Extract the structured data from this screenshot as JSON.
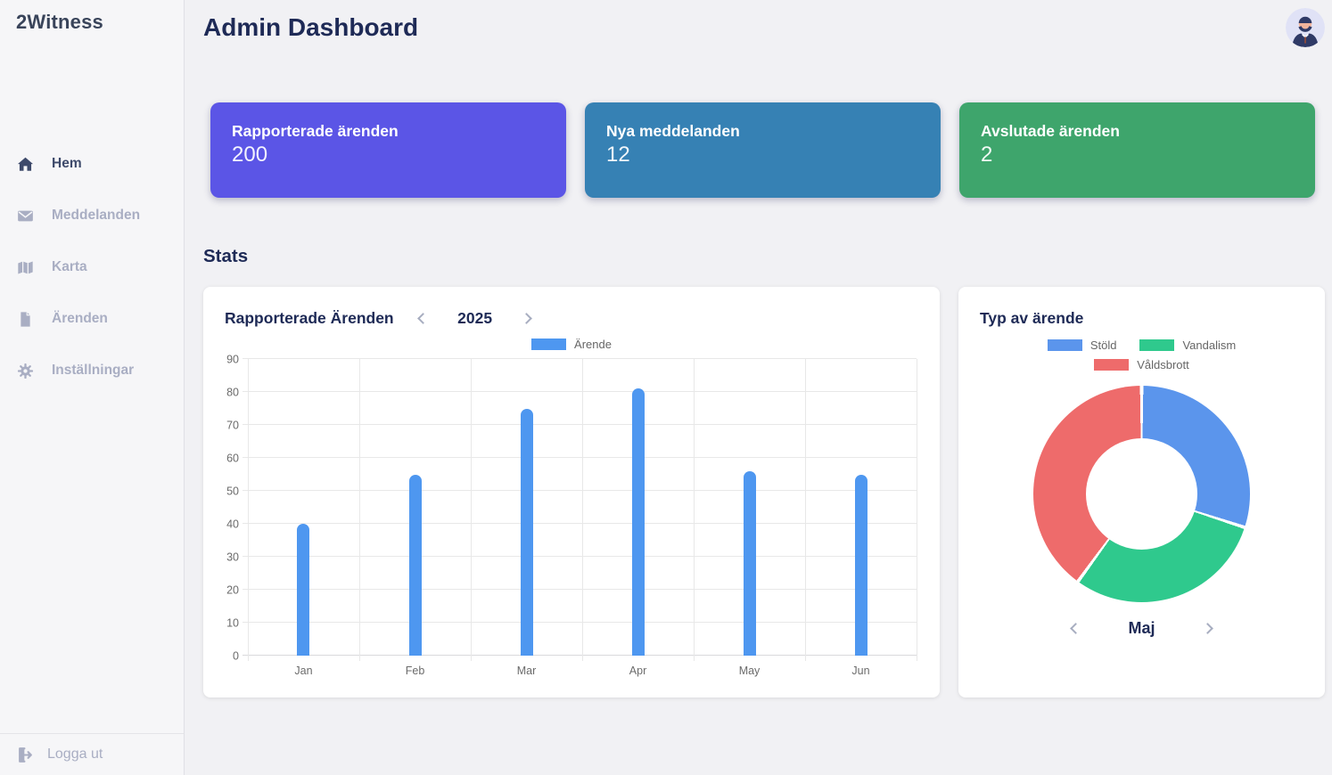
{
  "app": {
    "logo": "2Witness"
  },
  "sidebar": {
    "items": [
      {
        "label": "Hem",
        "icon": "home-icon",
        "active": true
      },
      {
        "label": "Meddelanden",
        "icon": "envelope-icon",
        "active": false
      },
      {
        "label": "Karta",
        "icon": "map-icon",
        "active": false
      },
      {
        "label": "Ärenden",
        "icon": "document-icon",
        "active": false
      },
      {
        "label": "Inställningar",
        "icon": "gear-icon",
        "active": false
      }
    ],
    "logout_label": "Logga ut"
  },
  "header": {
    "title": "Admin Dashboard"
  },
  "stats_heading": "Stats",
  "stat_cards": [
    {
      "label": "Rapporterade ärenden",
      "value": "200",
      "color": "#5b55e6"
    },
    {
      "label": "Nya meddelanden",
      "value": "12",
      "color": "#3681b4"
    },
    {
      "label": "Avslutade ärenden",
      "value": "2",
      "color": "#3ea56c"
    }
  ],
  "chart_data": [
    {
      "type": "bar",
      "title": "Rapporterade Ärenden",
      "year": "2025",
      "categories": [
        "Jan",
        "Feb",
        "Mar",
        "Apr",
        "May",
        "Jun"
      ],
      "series": [
        {
          "name": "Ärende",
          "values": [
            40,
            55,
            75,
            81,
            56,
            55
          ]
        }
      ],
      "ylim": [
        0,
        90
      ],
      "ytick_step": 10,
      "bar_color": "#4e97f0",
      "grid": true,
      "legend_position": "top-center"
    },
    {
      "type": "pie",
      "variant": "donut",
      "title": "Typ av ärende",
      "labels": [
        "Stöld",
        "Vandalism",
        "Våldsbrott"
      ],
      "values": [
        30,
        30,
        40
      ],
      "colors": [
        "#5b95ec",
        "#2fc98d",
        "#ee6b6b"
      ],
      "selected_month": "Maj",
      "legend_position": "top-center"
    }
  ]
}
